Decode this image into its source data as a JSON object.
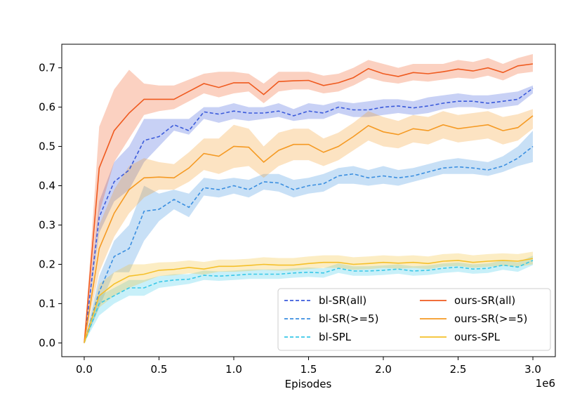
{
  "chart_data": {
    "type": "line",
    "xlabel": "Episodes",
    "ylabel": "",
    "x_offset_label": "1e6",
    "xlim": [
      -0.15,
      3.15
    ],
    "ylim": [
      -0.035,
      0.76
    ],
    "x_ticks": [
      0.0,
      0.5,
      1.0,
      1.5,
      2.0,
      2.5,
      3.0
    ],
    "x_tick_labels": [
      "0.0",
      "0.5",
      "1.0",
      "1.5",
      "2.0",
      "2.5",
      "3.0"
    ],
    "y_ticks": [
      0.0,
      0.1,
      0.2,
      0.3,
      0.4,
      0.5,
      0.6,
      0.7
    ],
    "y_tick_labels": [
      "0.0",
      "0.1",
      "0.2",
      "0.3",
      "0.4",
      "0.5",
      "0.6",
      "0.7"
    ],
    "grid": false,
    "legend_position": "lower-right",
    "x": [
      0.0,
      0.1,
      0.2,
      0.3,
      0.4,
      0.5,
      0.6,
      0.7,
      0.8,
      0.9,
      1.0,
      1.1,
      1.2,
      1.3,
      1.4,
      1.5,
      1.6,
      1.7,
      1.8,
      1.9,
      2.0,
      2.1,
      2.2,
      2.3,
      2.4,
      2.5,
      2.6,
      2.7,
      2.8,
      2.9,
      3.0
    ],
    "series": [
      {
        "name": "bl-SR(all)",
        "color": "#3b5bdb",
        "dash": true,
        "values": [
          0.0,
          0.32,
          0.41,
          0.44,
          0.515,
          0.525,
          0.555,
          0.54,
          0.588,
          0.582,
          0.59,
          0.585,
          0.585,
          0.59,
          0.578,
          0.59,
          0.585,
          0.6,
          0.593,
          0.593,
          0.6,
          0.603,
          0.598,
          0.603,
          0.61,
          0.615,
          0.615,
          0.61,
          0.615,
          0.62,
          0.648
        ],
        "lower": [
          0.0,
          0.28,
          0.36,
          0.39,
          0.46,
          0.5,
          0.54,
          0.53,
          0.57,
          0.56,
          0.57,
          0.565,
          0.57,
          0.575,
          0.565,
          0.57,
          0.57,
          0.585,
          0.575,
          0.575,
          0.58,
          0.585,
          0.58,
          0.585,
          0.595,
          0.6,
          0.6,
          0.595,
          0.6,
          0.605,
          0.635
        ],
        "upper": [
          0.0,
          0.36,
          0.46,
          0.5,
          0.57,
          0.57,
          0.57,
          0.57,
          0.6,
          0.6,
          0.61,
          0.6,
          0.6,
          0.61,
          0.595,
          0.61,
          0.605,
          0.615,
          0.61,
          0.615,
          0.62,
          0.62,
          0.615,
          0.625,
          0.63,
          0.635,
          0.63,
          0.63,
          0.635,
          0.64,
          0.655
        ]
      },
      {
        "name": "bl-SR(>=5)",
        "color": "#3b8fe0",
        "dash": true,
        "values": [
          0.0,
          0.13,
          0.22,
          0.24,
          0.335,
          0.34,
          0.365,
          0.345,
          0.395,
          0.39,
          0.4,
          0.39,
          0.41,
          0.407,
          0.39,
          0.4,
          0.405,
          0.425,
          0.43,
          0.42,
          0.425,
          0.42,
          0.425,
          0.435,
          0.445,
          0.448,
          0.445,
          0.44,
          0.45,
          0.47,
          0.5
        ],
        "lower": [
          0.0,
          0.09,
          0.18,
          0.18,
          0.26,
          0.31,
          0.34,
          0.32,
          0.375,
          0.37,
          0.38,
          0.37,
          0.39,
          0.385,
          0.37,
          0.38,
          0.385,
          0.405,
          0.405,
          0.4,
          0.405,
          0.4,
          0.41,
          0.42,
          0.43,
          0.43,
          0.43,
          0.425,
          0.435,
          0.45,
          0.46
        ],
        "upper": [
          0.0,
          0.17,
          0.26,
          0.3,
          0.4,
          0.38,
          0.39,
          0.38,
          0.42,
          0.415,
          0.42,
          0.415,
          0.43,
          0.43,
          0.415,
          0.42,
          0.43,
          0.445,
          0.45,
          0.44,
          0.45,
          0.44,
          0.445,
          0.455,
          0.465,
          0.47,
          0.465,
          0.46,
          0.475,
          0.5,
          0.54
        ]
      },
      {
        "name": "bl-SPL",
        "color": "#38c8e8",
        "dash": true,
        "values": [
          0.0,
          0.1,
          0.12,
          0.14,
          0.14,
          0.155,
          0.16,
          0.162,
          0.172,
          0.17,
          0.172,
          0.175,
          0.175,
          0.175,
          0.178,
          0.18,
          0.178,
          0.19,
          0.183,
          0.183,
          0.185,
          0.188,
          0.183,
          0.185,
          0.19,
          0.193,
          0.188,
          0.19,
          0.198,
          0.193,
          0.21
        ],
        "lower": [
          0.0,
          0.07,
          0.1,
          0.12,
          0.12,
          0.14,
          0.145,
          0.15,
          0.16,
          0.158,
          0.16,
          0.163,
          0.163,
          0.163,
          0.166,
          0.168,
          0.166,
          0.178,
          0.171,
          0.171,
          0.173,
          0.176,
          0.171,
          0.173,
          0.178,
          0.181,
          0.176,
          0.178,
          0.186,
          0.181,
          0.198
        ],
        "upper": [
          0.0,
          0.12,
          0.14,
          0.16,
          0.16,
          0.17,
          0.175,
          0.175,
          0.184,
          0.182,
          0.184,
          0.187,
          0.187,
          0.187,
          0.19,
          0.192,
          0.19,
          0.202,
          0.195,
          0.195,
          0.197,
          0.2,
          0.195,
          0.197,
          0.202,
          0.205,
          0.2,
          0.202,
          0.21,
          0.205,
          0.222
        ]
      },
      {
        "name": "ours-SR(all)",
        "color": "#ef5a1f",
        "dash": false,
        "values": [
          0.0,
          0.445,
          0.54,
          0.585,
          0.62,
          0.62,
          0.62,
          0.64,
          0.66,
          0.65,
          0.662,
          0.662,
          0.632,
          0.665,
          0.667,
          0.668,
          0.655,
          0.662,
          0.675,
          0.698,
          0.685,
          0.678,
          0.688,
          0.685,
          0.69,
          0.697,
          0.692,
          0.7,
          0.688,
          0.705,
          0.71
        ],
        "lower": [
          0.0,
          0.33,
          0.46,
          0.52,
          0.58,
          0.59,
          0.595,
          0.615,
          0.635,
          0.625,
          0.635,
          0.64,
          0.61,
          0.64,
          0.645,
          0.645,
          0.635,
          0.64,
          0.655,
          0.675,
          0.665,
          0.66,
          0.668,
          0.665,
          0.67,
          0.675,
          0.672,
          0.68,
          0.668,
          0.685,
          0.69
        ],
        "upper": [
          0.0,
          0.55,
          0.645,
          0.695,
          0.66,
          0.655,
          0.655,
          0.67,
          0.685,
          0.69,
          0.69,
          0.685,
          0.66,
          0.69,
          0.69,
          0.69,
          0.68,
          0.685,
          0.7,
          0.72,
          0.71,
          0.7,
          0.71,
          0.71,
          0.71,
          0.72,
          0.715,
          0.725,
          0.71,
          0.725,
          0.735
        ]
      },
      {
        "name": "ours-SR(>=5)",
        "color": "#f59a23",
        "dash": false,
        "values": [
          0.0,
          0.24,
          0.33,
          0.39,
          0.42,
          0.422,
          0.42,
          0.445,
          0.482,
          0.475,
          0.5,
          0.498,
          0.46,
          0.49,
          0.505,
          0.505,
          0.485,
          0.5,
          0.525,
          0.553,
          0.537,
          0.53,
          0.545,
          0.54,
          0.555,
          0.545,
          0.55,
          0.555,
          0.54,
          0.548,
          0.578
        ],
        "lower": [
          0.0,
          0.18,
          0.27,
          0.33,
          0.37,
          0.39,
          0.39,
          0.41,
          0.44,
          0.43,
          0.445,
          0.45,
          0.42,
          0.45,
          0.465,
          0.465,
          0.45,
          0.465,
          0.49,
          0.515,
          0.5,
          0.495,
          0.51,
          0.505,
          0.52,
          0.51,
          0.515,
          0.52,
          0.505,
          0.515,
          0.545
        ],
        "upper": [
          0.0,
          0.3,
          0.39,
          0.45,
          0.47,
          0.46,
          0.455,
          0.485,
          0.52,
          0.52,
          0.555,
          0.545,
          0.5,
          0.535,
          0.545,
          0.545,
          0.52,
          0.535,
          0.56,
          0.59,
          0.575,
          0.565,
          0.58,
          0.575,
          0.59,
          0.58,
          0.585,
          0.59,
          0.575,
          0.582,
          0.595
        ]
      },
      {
        "name": "ours-SPL",
        "color": "#f5c02a",
        "dash": false,
        "values": [
          0.0,
          0.12,
          0.15,
          0.17,
          0.175,
          0.185,
          0.187,
          0.192,
          0.188,
          0.195,
          0.195,
          0.197,
          0.2,
          0.198,
          0.198,
          0.202,
          0.205,
          0.205,
          0.2,
          0.202,
          0.205,
          0.203,
          0.205,
          0.202,
          0.208,
          0.21,
          0.205,
          0.208,
          0.21,
          0.208,
          0.215
        ],
        "lower": [
          0.0,
          0.09,
          0.12,
          0.14,
          0.155,
          0.17,
          0.172,
          0.177,
          0.174,
          0.181,
          0.181,
          0.183,
          0.186,
          0.184,
          0.184,
          0.188,
          0.191,
          0.191,
          0.186,
          0.188,
          0.191,
          0.189,
          0.191,
          0.188,
          0.194,
          0.196,
          0.191,
          0.194,
          0.196,
          0.194,
          0.2
        ],
        "upper": [
          0.0,
          0.15,
          0.18,
          0.2,
          0.2,
          0.205,
          0.206,
          0.21,
          0.206,
          0.212,
          0.212,
          0.214,
          0.218,
          0.216,
          0.216,
          0.22,
          0.223,
          0.223,
          0.218,
          0.22,
          0.223,
          0.221,
          0.223,
          0.22,
          0.226,
          0.228,
          0.223,
          0.226,
          0.228,
          0.226,
          0.232
        ]
      }
    ]
  }
}
